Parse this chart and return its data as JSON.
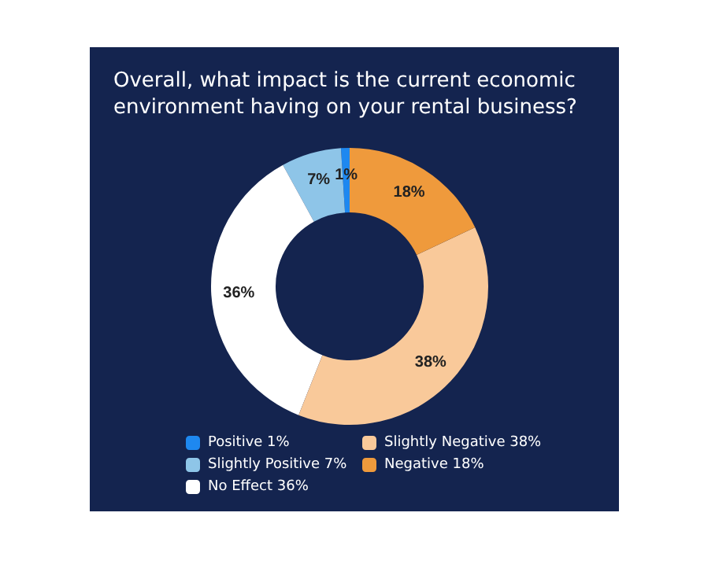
{
  "chart_data": {
    "type": "donut",
    "title": "Overall, what impact is the current economic environment having on your rental business?",
    "categories": [
      "Positive 1%",
      "Slightly Positive 7%",
      "No Effect 36%",
      "Slightly Negative 38%",
      "Negative 18%"
    ],
    "values": [
      1,
      7,
      36,
      38,
      18
    ],
    "value_labels": [
      "1%",
      "7%",
      "36%",
      "38%",
      "18%"
    ],
    "colors": [
      "#1e88f0",
      "#8ec5e8",
      "#ffffff",
      "#f9c99a",
      "#ef9a3c"
    ],
    "legend": "bottom"
  }
}
